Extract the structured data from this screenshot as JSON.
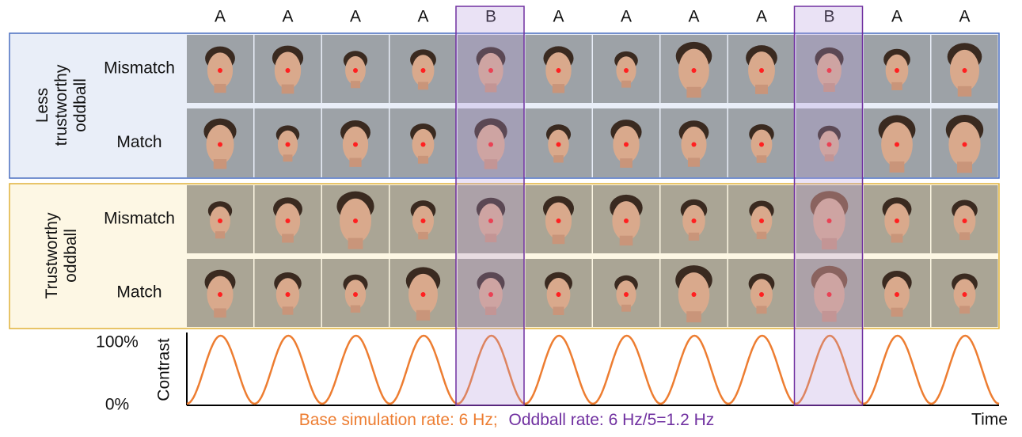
{
  "columns": [
    "A",
    "A",
    "A",
    "A",
    "B",
    "A",
    "A",
    "A",
    "A",
    "B",
    "A",
    "A"
  ],
  "groups": [
    {
      "label": [
        "Less",
        "trustworthy",
        "oddball"
      ],
      "rows": [
        "Mismatch",
        "Match"
      ]
    },
    {
      "label": [
        "Trustworthy",
        "oddball"
      ],
      "rows": [
        "Mismatch",
        "Match"
      ]
    }
  ],
  "contrast": {
    "axis_label": "Contrast",
    "top_label": "100%",
    "bottom_label": "0%",
    "time_label": "Time",
    "base_rate": "Base simulation rate: 6 Hz;",
    "oddball_rate": "Oddball rate: 6 Hz/5=1.2 Hz"
  }
}
